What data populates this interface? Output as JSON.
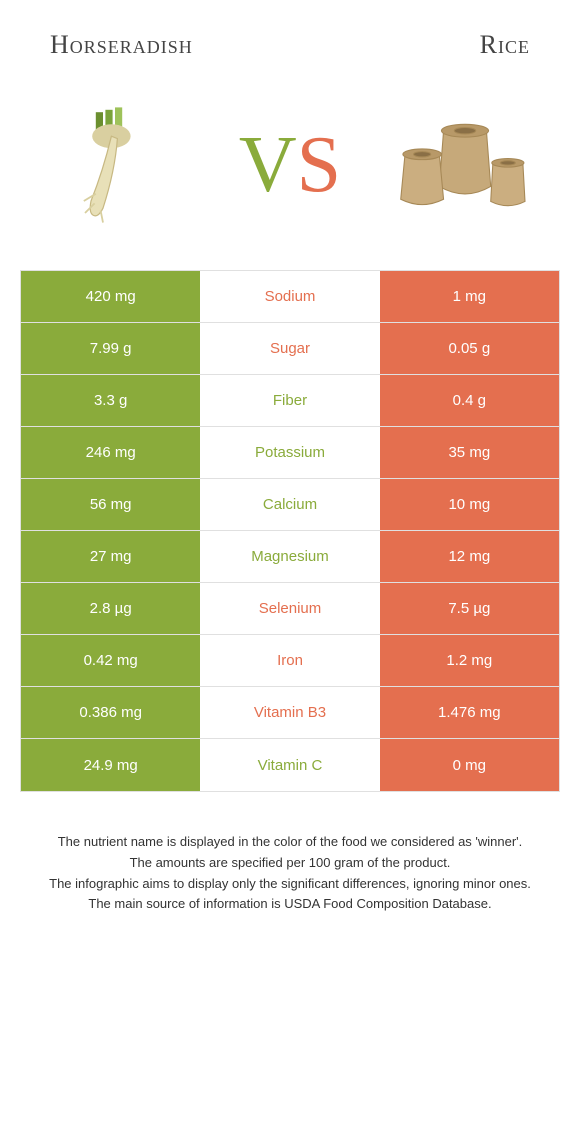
{
  "header": {
    "left_title": "Horseradish",
    "right_title": "Rice"
  },
  "vs": {
    "v": "V",
    "s": "S"
  },
  "colors": {
    "green": "#8aab3b",
    "orange": "#e46f4f",
    "border": "#e0e0e0"
  },
  "table": {
    "rows": [
      {
        "left": "420 mg",
        "mid": "Sodium",
        "right": "1 mg",
        "winner": "orange"
      },
      {
        "left": "7.99 g",
        "mid": "Sugar",
        "right": "0.05 g",
        "winner": "orange"
      },
      {
        "left": "3.3 g",
        "mid": "Fiber",
        "right": "0.4 g",
        "winner": "green"
      },
      {
        "left": "246 mg",
        "mid": "Potassium",
        "right": "35 mg",
        "winner": "green"
      },
      {
        "left": "56 mg",
        "mid": "Calcium",
        "right": "10 mg",
        "winner": "green"
      },
      {
        "left": "27 mg",
        "mid": "Magnesium",
        "right": "12 mg",
        "winner": "green"
      },
      {
        "left": "2.8 µg",
        "mid": "Selenium",
        "right": "7.5 µg",
        "winner": "orange"
      },
      {
        "left": "0.42 mg",
        "mid": "Iron",
        "right": "1.2 mg",
        "winner": "orange"
      },
      {
        "left": "0.386 mg",
        "mid": "Vitamin B3",
        "right": "1.476 mg",
        "winner": "orange"
      },
      {
        "left": "24.9 mg",
        "mid": "Vitamin C",
        "right": "0 mg",
        "winner": "green"
      }
    ]
  },
  "footer": {
    "line1": "The nutrient name is displayed in the color of the food we considered as 'winner'.",
    "line2": "The amounts are specified per 100 gram of the product.",
    "line3": "The infographic aims to display only the significant differences, ignoring minor ones.",
    "line4": "The main source of information is USDA Food Composition Database."
  }
}
